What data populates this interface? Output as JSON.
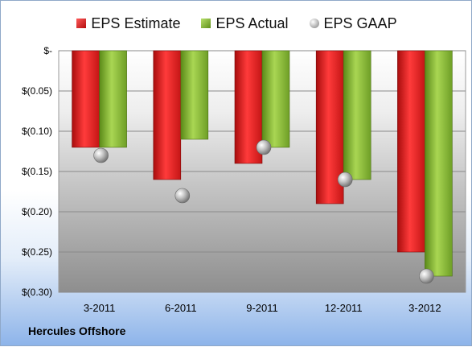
{
  "chart_data": {
    "type": "bar",
    "categories": [
      "3-2011",
      "6-2011",
      "9-2011",
      "12-2011",
      "3-2012"
    ],
    "series": [
      {
        "name": "EPS Estimate",
        "values": [
          -0.12,
          -0.16,
          -0.14,
          -0.19,
          -0.25
        ],
        "color": "#d41f1f"
      },
      {
        "name": "EPS Actual",
        "values": [
          -0.12,
          -0.11,
          -0.12,
          -0.16,
          -0.28
        ],
        "color": "#7ab032"
      },
      {
        "name": "EPS GAAP",
        "values": [
          -0.13,
          -0.18,
          -0.12,
          -0.16,
          -0.28
        ],
        "color": "#a0a0a0",
        "marker": "circle"
      }
    ],
    "y_ticks": [
      "$-",
      "$(0.05)",
      "$(0.10)",
      "$(0.15)",
      "$(0.20)",
      "$(0.25)",
      "$(0.30)"
    ],
    "ylim": [
      -0.3,
      0
    ],
    "grid": true,
    "legend_position": "top"
  },
  "footer": {
    "company": "Hercules Offshore"
  }
}
